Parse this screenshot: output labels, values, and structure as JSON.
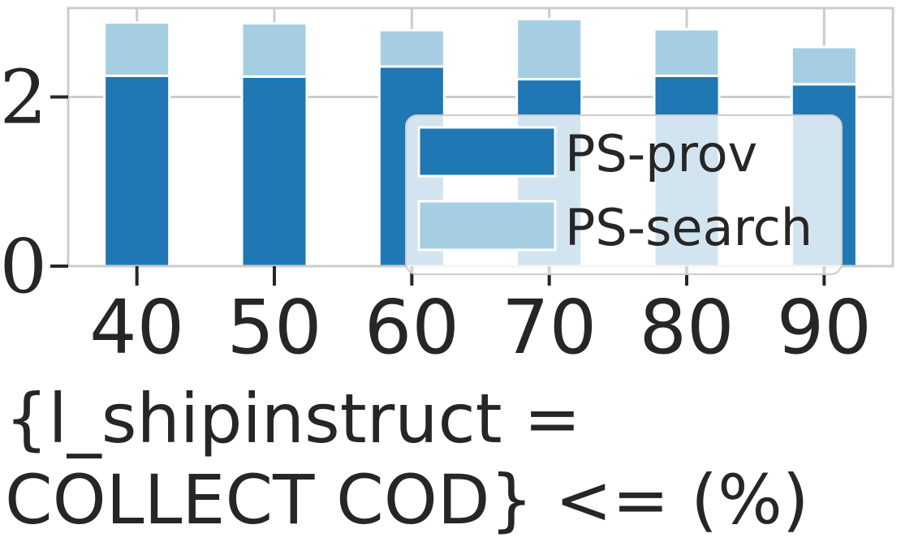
{
  "chart_data": {
    "type": "bar",
    "stacked": true,
    "categories": [
      "40",
      "50",
      "60",
      "70",
      "80",
      "90"
    ],
    "series": [
      {
        "name": "PS-prov",
        "color": "#1f77b4",
        "values": [
          2.25,
          2.24,
          2.36,
          2.21,
          2.25,
          2.15
        ]
      },
      {
        "name": "PS-search",
        "color": "#a6cee3",
        "values": [
          0.63,
          0.63,
          0.43,
          0.71,
          0.55,
          0.44
        ]
      }
    ],
    "xlabel_lines": [
      "{l_shipinstruct =",
      "COLLECT COD} <= (%)"
    ],
    "ylabel": "",
    "yticks": [
      "0",
      "2"
    ],
    "ytick_values": [
      0,
      2
    ],
    "ylim": [
      0,
      3.05
    ],
    "grid": true,
    "legend_position": "lower-right"
  }
}
